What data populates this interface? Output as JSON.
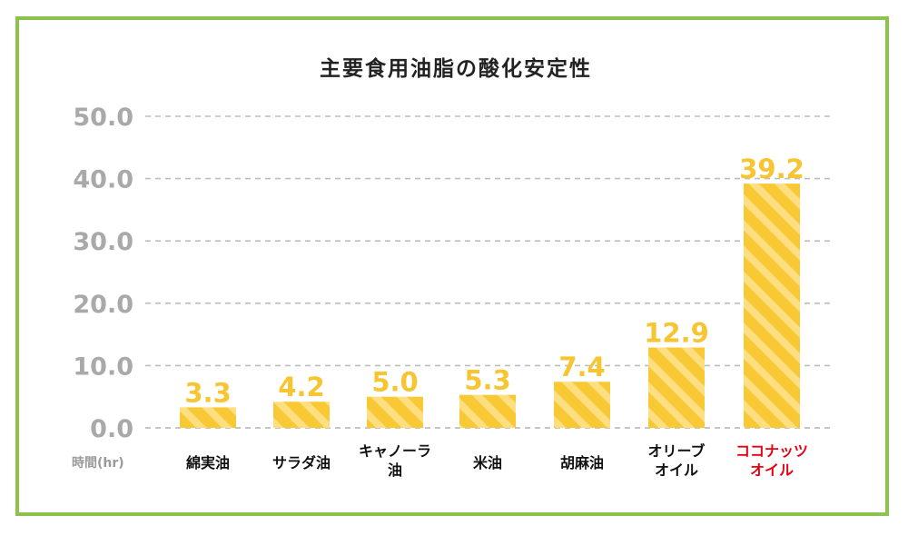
{
  "chart_data": {
    "type": "bar",
    "title": "主要食用油脂の酸化安定性",
    "xlabel": "時間(hr)",
    "ylabel": "",
    "ylim": [
      0,
      50
    ],
    "yticks": [
      "0.0",
      "10.0",
      "20.0",
      "30.0",
      "40.0",
      "50.0"
    ],
    "grid": true,
    "categories": [
      [
        "綿実油"
      ],
      [
        "サラダ油"
      ],
      [
        "キャノーラ",
        "油"
      ],
      [
        "米油"
      ],
      [
        "胡麻油"
      ],
      [
        "オリーブ",
        "オイル"
      ],
      [
        "ココナッツ",
        "オイル"
      ]
    ],
    "values": [
      3.3,
      4.2,
      5.0,
      5.3,
      7.4,
      12.9,
      39.2
    ],
    "value_labels": [
      "3.3",
      "4.2",
      "5.0",
      "5.3",
      "7.4",
      "12.9",
      "39.2"
    ],
    "highlight_index": 6,
    "colors": {
      "bar": "#f9c935",
      "bar_stripe": "#fddf82",
      "data_label": "#f6c531",
      "highlight_text": "#e60012",
      "frame": "#8cc34b",
      "axis_text": "#a9a9a9"
    }
  }
}
